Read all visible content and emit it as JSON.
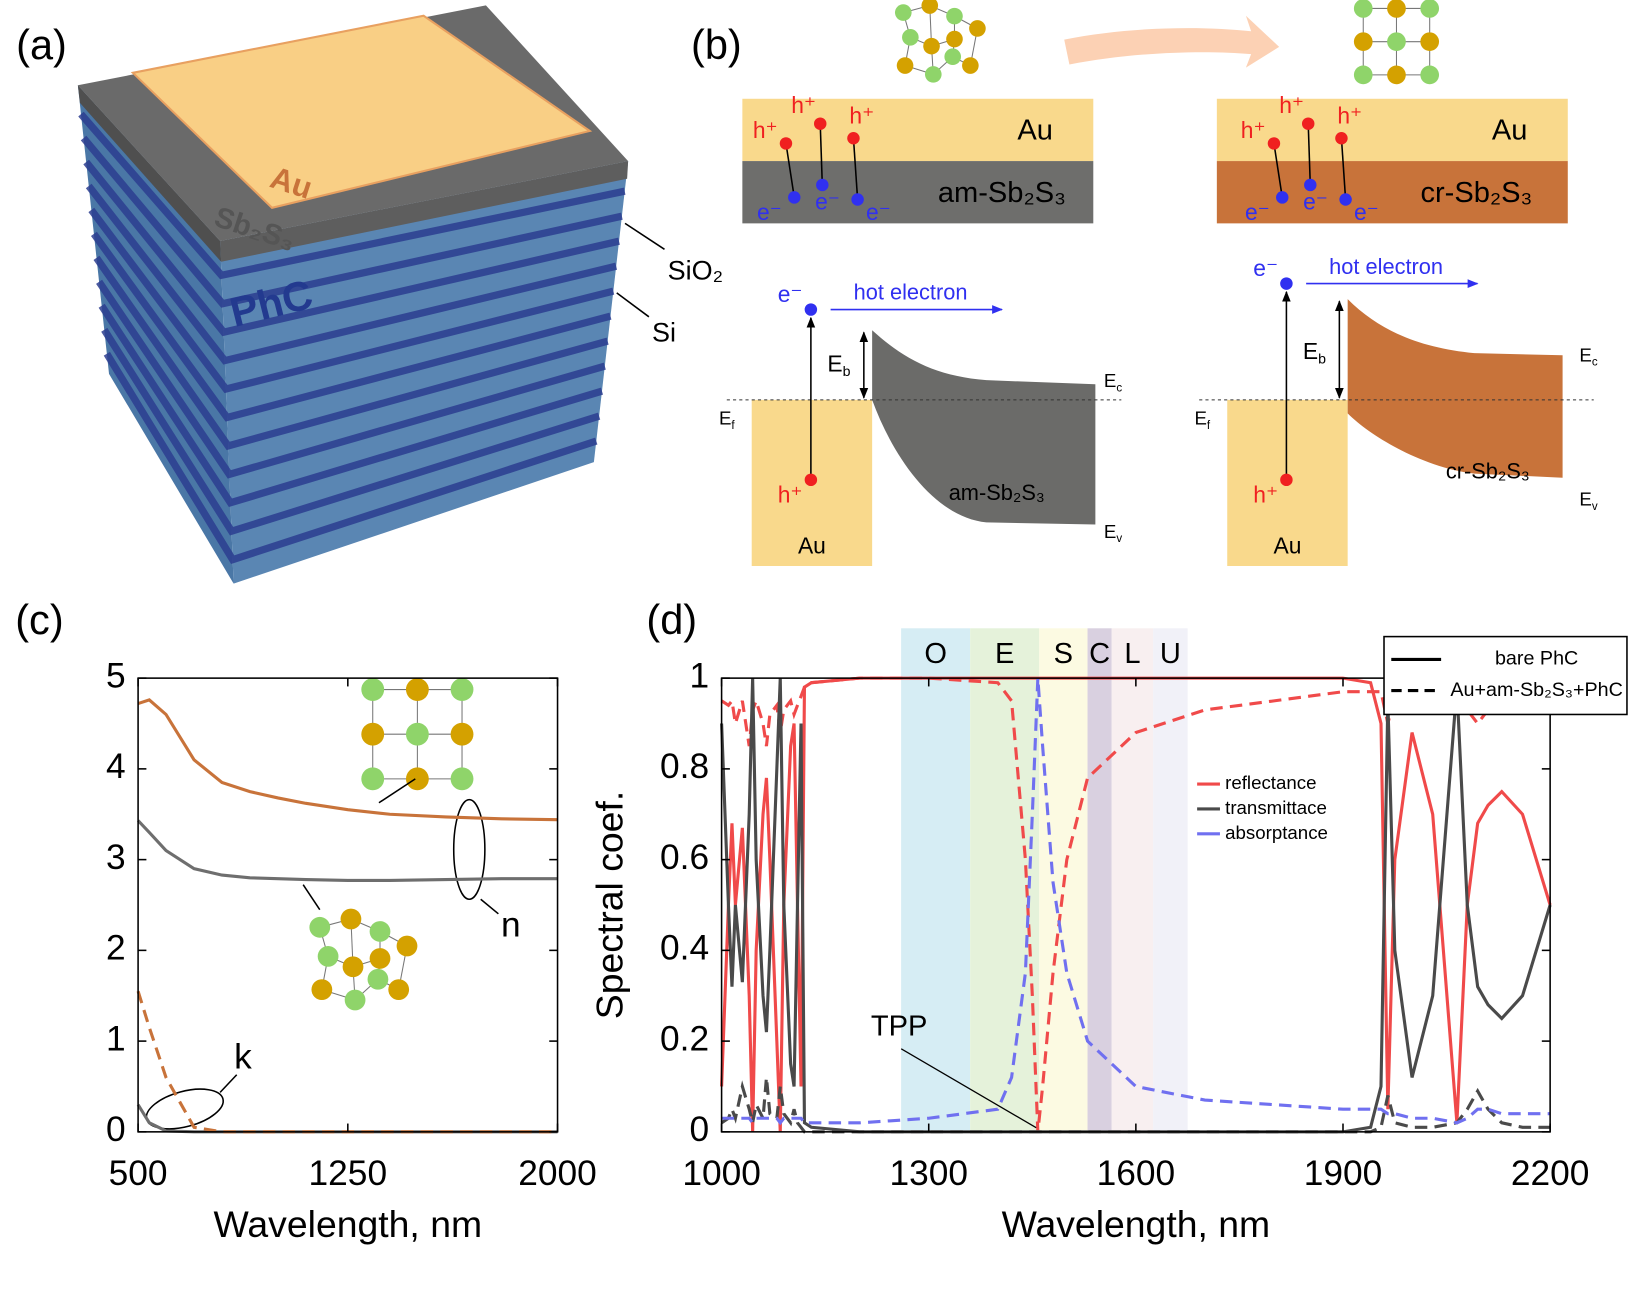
{
  "panels": {
    "a": {
      "label": "(a)",
      "au": "Au",
      "sb2s3": "Sb₂S₃",
      "phc": "PhC",
      "sio2": "SiO₂",
      "si": "Si"
    },
    "b": {
      "label": "(b)",
      "interfaces": [
        {
          "metal": "Au",
          "semiconductor": "am-Sb₂S₃",
          "holes": [
            "h⁺",
            "h⁺",
            "h⁺"
          ],
          "electrons": [
            "e⁻",
            "e⁻",
            "e⁻"
          ]
        },
        {
          "metal": "Au",
          "semiconductor": "cr-Sb₂S₃",
          "holes": [
            "h⁺",
            "h⁺",
            "h⁺"
          ],
          "electrons": [
            "e⁻",
            "e⁻",
            "e⁻"
          ]
        }
      ],
      "bands": [
        {
          "metal": "Au",
          "semiconductor": "am-Sb₂S₃",
          "hole": "h⁺",
          "electron": "e⁻",
          "flow": "hot electron",
          "barrier": {
            "base": "E",
            "sub": "b"
          },
          "fermi": {
            "base": "E",
            "sub": "f"
          },
          "conduction": {
            "base": "E",
            "sub": "c"
          },
          "valence": {
            "base": "E",
            "sub": "v"
          }
        },
        {
          "metal": "Au",
          "semiconductor": "cr-Sb₂S₃",
          "hole": "h⁺",
          "electron": "e⁻",
          "flow": "hot electron",
          "barrier": {
            "base": "E",
            "sub": "b"
          },
          "fermi": {
            "base": "E",
            "sub": "f"
          },
          "conduction": {
            "base": "E",
            "sub": "c"
          },
          "valence": {
            "base": "E",
            "sub": "v"
          }
        }
      ]
    }
  },
  "chart_data": [
    {
      "type": "line",
      "panel_label": "(c)",
      "xlabel": "Wavelength, nm",
      "x": [
        500,
        540,
        600,
        700,
        800,
        900,
        1000,
        1100,
        1250,
        1400,
        1600,
        1800,
        2000
      ],
      "xlim": [
        500,
        2000
      ],
      "xticks": [
        500,
        1250,
        2000
      ],
      "ylim": [
        0,
        5
      ],
      "yticks": [
        0,
        1,
        2,
        3,
        4,
        5
      ],
      "series": [
        {
          "color": "#c8733a",
          "dash": "solid",
          "values": [
            4.72,
            4.76,
            4.6,
            4.1,
            3.85,
            3.75,
            3.68,
            3.62,
            3.55,
            3.5,
            3.47,
            3.45,
            3.44
          ]
        },
        {
          "color": "#6e6e6e",
          "dash": "solid",
          "values": [
            3.43,
            3.3,
            3.1,
            2.9,
            2.83,
            2.8,
            2.79,
            2.78,
            2.77,
            2.77,
            2.78,
            2.79,
            2.79
          ]
        },
        {
          "color": "#6e6e6e",
          "dash": "solid",
          "values": [
            0.3,
            0.1,
            0.01,
            0,
            0,
            0,
            0,
            0,
            0,
            0,
            0,
            0,
            0
          ]
        },
        {
          "color": "#c8733a",
          "dash": "dashed",
          "values": [
            1.55,
            1.15,
            0.6,
            0.05,
            0,
            0,
            0,
            0,
            0,
            0,
            0,
            0,
            0
          ]
        }
      ],
      "annotations": {
        "n": "n",
        "k": "k"
      }
    },
    {
      "type": "line",
      "panel_label": "(d)",
      "xlabel": "Wavelength, nm",
      "ylabel": "Spectral coef.",
      "annotation": "TPP",
      "x": [
        1000,
        1010,
        1015,
        1020,
        1030,
        1040,
        1045,
        1050,
        1060,
        1065,
        1070,
        1080,
        1085,
        1090,
        1100,
        1105,
        1110,
        1115,
        1120,
        1130,
        1200,
        1300,
        1400,
        1420,
        1440,
        1450,
        1458,
        1465,
        1480,
        1500,
        1530,
        1600,
        1700,
        1800,
        1900,
        1940,
        1955,
        1965,
        1975,
        2000,
        2030,
        2065,
        2080,
        2095,
        2110,
        2130,
        2160,
        2200
      ],
      "xlim": [
        1000,
        2200
      ],
      "xticks": [
        1000,
        1300,
        1600,
        1900,
        2200
      ],
      "ylim": [
        0,
        1
      ],
      "yticks": [
        0,
        0.2,
        0.4,
        0.6,
        0.8,
        1
      ],
      "bands": [
        {
          "label": "O",
          "range": [
            1260,
            1360
          ],
          "color": "#d6edf4"
        },
        {
          "label": "E",
          "range": [
            1360,
            1460
          ],
          "color": "#e5f2da"
        },
        {
          "label": "S",
          "range": [
            1460,
            1530
          ],
          "color": "#fcfae2"
        },
        {
          "label": "C",
          "range": [
            1530,
            1565
          ],
          "color": "#d9d0e0"
        },
        {
          "label": "L",
          "range": [
            1565,
            1625
          ],
          "color": "#f8eff0"
        },
        {
          "label": "U",
          "range": [
            1625,
            1675
          ],
          "color": "#f1f1f8"
        }
      ],
      "series": [
        {
          "name": "reflectance",
          "color": "#f04a4a",
          "lines": [
            {
              "style": "solid",
              "values": [
                0.1,
                0.5,
                0.68,
                0.5,
                0.67,
                0.3,
                0,
                0.4,
                0.7,
                0.78,
                0.6,
                0.2,
                0,
                0.5,
                0.85,
                0.9,
                0.5,
                0.1,
                0.98,
                0.99,
                1,
                1,
                1,
                1,
                1,
                1,
                1,
                1,
                1,
                1,
                1,
                1,
                1,
                1,
                1,
                0.99,
                0.9,
                0.05,
                0.6,
                0.88,
                0.7,
                0.02,
                0.5,
                0.68,
                0.72,
                0.75,
                0.7,
                0.5
              ]
            },
            {
              "style": "dashed",
              "values": [
                0.95,
                0.94,
                0.95,
                0.9,
                0.95,
                0.85,
                0.93,
                0.95,
                0.9,
                0.85,
                0.92,
                0.94,
                0.88,
                0.93,
                0.95,
                0.92,
                0.94,
                0.96,
                0.98,
                0.99,
                1,
                1,
                0.99,
                0.95,
                0.6,
                0.3,
                0,
                0.1,
                0.35,
                0.6,
                0.78,
                0.88,
                0.93,
                0.95,
                0.97,
                0.97,
                0.97,
                0.9,
                0.96,
                0.97,
                0.97,
                0.96,
                0.93,
                0.9,
                0.93,
                0.96,
                0.97,
                0.97
              ]
            }
          ]
        },
        {
          "name": "transmittace",
          "color": "#4a4a4a",
          "lines": [
            {
              "style": "solid",
              "values": [
                0.9,
                0.5,
                0.32,
                0.5,
                0.33,
                0.7,
                1,
                0.6,
                0.3,
                0.22,
                0.4,
                0.8,
                1,
                0.5,
                0.15,
                0.1,
                0.5,
                0.9,
                0.02,
                0.01,
                0,
                0,
                0,
                0,
                0,
                0,
                0,
                0,
                0,
                0,
                0,
                0,
                0,
                0,
                0,
                0.01,
                0.1,
                0.95,
                0.4,
                0.12,
                0.3,
                0.98,
                0.5,
                0.32,
                0.28,
                0.25,
                0.3,
                0.5
              ]
            },
            {
              "style": "dashed",
              "values": [
                0.02,
                0.03,
                0.05,
                0.03,
                0.1,
                0.05,
                0.02,
                0.06,
                0.03,
                0.12,
                0.04,
                0.03,
                0.1,
                0.04,
                0.02,
                0.05,
                0.02,
                0.01,
                0,
                0,
                0,
                0,
                0,
                0,
                0,
                0,
                0,
                0,
                0,
                0,
                0,
                0,
                0,
                0,
                0,
                0,
                0.01,
                0.08,
                0.02,
                0.01,
                0.01,
                0.02,
                0.05,
                0.09,
                0.05,
                0.02,
                0.01,
                0.01
              ]
            }
          ]
        },
        {
          "name": "absorptance",
          "color": "#7070f0",
          "lines": [
            {
              "style": "dashed",
              "values": [
                0.03,
                0.03,
                0.03,
                0.03,
                0.03,
                0.03,
                0.02,
                0.03,
                0.03,
                0.03,
                0.03,
                0.03,
                0.02,
                0.03,
                0.03,
                0.03,
                0.03,
                0.03,
                0.02,
                0.02,
                0.02,
                0.03,
                0.05,
                0.12,
                0.35,
                0.7,
                1,
                0.85,
                0.55,
                0.35,
                0.2,
                0.1,
                0.07,
                0.06,
                0.05,
                0.05,
                0.05,
                0.04,
                0.04,
                0.03,
                0.03,
                0.02,
                0.03,
                0.05,
                0.05,
                0.04,
                0.04,
                0.04
              ]
            }
          ]
        }
      ],
      "style_legend": [
        {
          "label": "bare PhC",
          "style": "solid"
        },
        {
          "label": "Au+am-Sb₂S₃+PhC",
          "style": "dashed"
        }
      ]
    }
  ]
}
